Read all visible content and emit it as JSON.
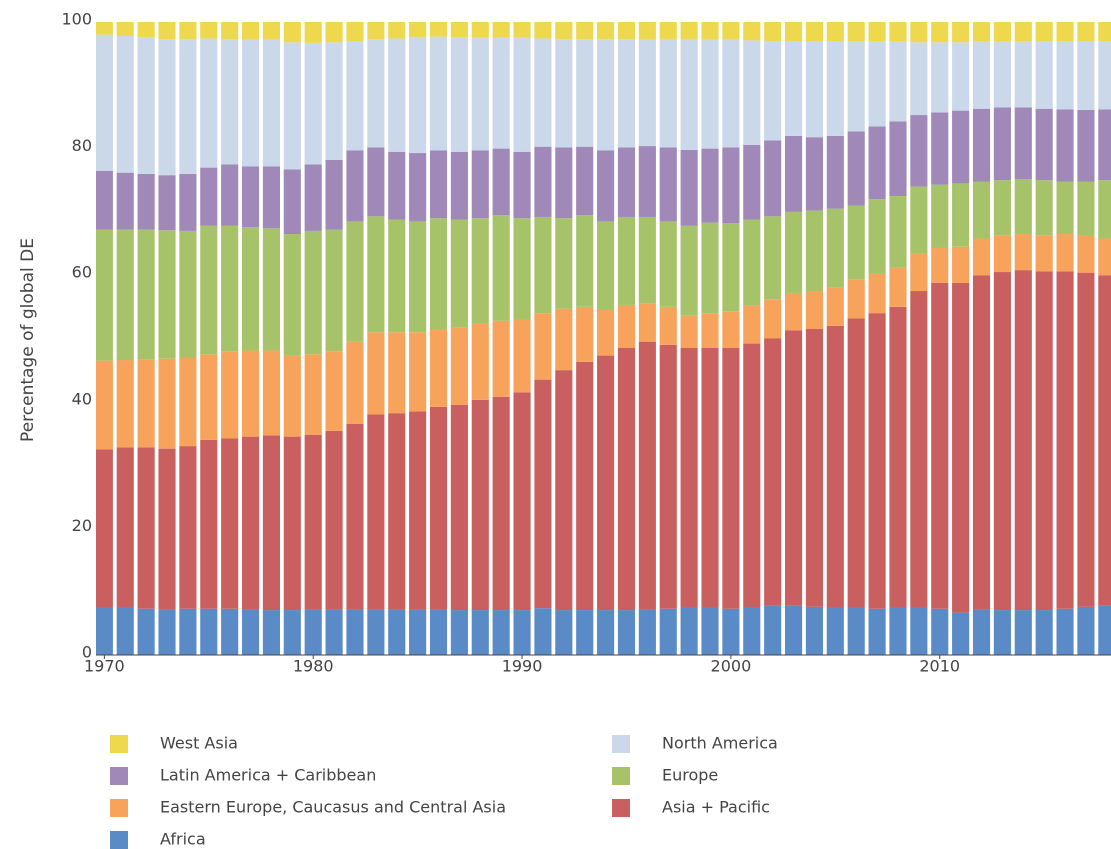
{
  "chart_data": {
    "type": "stacked_bar",
    "ylabel": "Percentage of global DE",
    "x": [
      1970,
      1971,
      1972,
      1973,
      1974,
      1975,
      1976,
      1977,
      1978,
      1979,
      1980,
      1981,
      1982,
      1983,
      1984,
      1985,
      1986,
      1987,
      1988,
      1989,
      1990,
      1991,
      1992,
      1993,
      1994,
      1995,
      1996,
      1997,
      1998,
      1999,
      2000,
      2001,
      2002,
      2003,
      2004,
      2005,
      2006,
      2007,
      2008,
      2009,
      2010,
      2011,
      2012,
      2013,
      2014,
      2015,
      2016,
      2017,
      2018
    ],
    "xlim": [
      1969.6,
      2018.2
    ],
    "xticks": [
      1970,
      1980,
      1990,
      2000,
      2010
    ],
    "ylim": [
      0,
      100
    ],
    "yticks": [
      0,
      20,
      40,
      60,
      80,
      100
    ],
    "series": [
      {
        "name": "Africa",
        "color": "#5b8bc7",
        "values": [
          7.5,
          7.5,
          7.3,
          7.2,
          7.3,
          7.3,
          7.3,
          7.2,
          7.1,
          7.1,
          7.2,
          7.2,
          7.2,
          7.2,
          7.2,
          7.2,
          7.2,
          7.1,
          7.1,
          7.1,
          7.1,
          7.4,
          7.1,
          7.1,
          7.1,
          7.1,
          7.2,
          7.3,
          7.5,
          7.5,
          7.3,
          7.5,
          7.8,
          7.8,
          7.6,
          7.5,
          7.5,
          7.3,
          7.5,
          7.5,
          7.3,
          6.7,
          7.2,
          7.1,
          7.1,
          7.1,
          7.3,
          7.6,
          7.8
        ]
      },
      {
        "name": "Asia + Pacific",
        "color": "#c9605f",
        "values": [
          25.0,
          25.3,
          25.5,
          25.4,
          25.7,
          26.7,
          26.9,
          27.3,
          27.6,
          27.4,
          27.6,
          28.2,
          29.3,
          30.8,
          31.0,
          31.3,
          32.0,
          32.4,
          33.2,
          33.7,
          34.4,
          36.1,
          37.9,
          39.2,
          40.2,
          41.4,
          42.3,
          41.7,
          41.0,
          41.0,
          41.2,
          41.7,
          42.2,
          43.5,
          43.9,
          44.5,
          45.7,
          46.7,
          47.5,
          50.0,
          51.5,
          52.1,
          52.8,
          53.4,
          53.7,
          53.5,
          53.3,
          52.8,
          52.2
        ]
      },
      {
        "name": "Eastern Europe, Caucasus and Central Asia",
        "color": "#f7a35c",
        "values": [
          14.0,
          13.8,
          13.9,
          14.2,
          14.0,
          13.5,
          13.8,
          13.6,
          13.4,
          12.8,
          12.7,
          12.6,
          13.0,
          13.0,
          12.8,
          12.5,
          12.3,
          12.3,
          12.0,
          12.0,
          11.5,
          10.5,
          9.7,
          8.7,
          7.2,
          6.8,
          6.0,
          6.0,
          5.1,
          5.5,
          5.8,
          6.0,
          6.2,
          5.9,
          6.0,
          6.0,
          6.1,
          6.2,
          6.2,
          6.0,
          5.5,
          5.7,
          5.8,
          5.8,
          5.7,
          5.7,
          5.9,
          5.8,
          5.8
        ]
      },
      {
        "name": "Europe",
        "color": "#a6c36a",
        "values": [
          20.7,
          20.6,
          20.5,
          20.3,
          20.0,
          20.3,
          19.8,
          19.5,
          19.3,
          19.2,
          19.5,
          19.2,
          19.0,
          18.3,
          17.8,
          17.5,
          17.5,
          17.0,
          16.7,
          16.7,
          16.0,
          15.2,
          14.3,
          14.5,
          14.0,
          13.9,
          13.7,
          13.5,
          14.2,
          14.3,
          13.9,
          13.6,
          13.1,
          12.8,
          12.7,
          12.5,
          11.7,
          11.8,
          11.3,
          10.5,
          10.0,
          10.0,
          9.0,
          8.7,
          8.7,
          8.7,
          8.3,
          8.6,
          9.2
        ]
      },
      {
        "name": "Latin America + Caribbean",
        "color": "#a088b9",
        "values": [
          9.3,
          9.0,
          8.8,
          8.7,
          9.0,
          9.2,
          9.7,
          9.6,
          9.8,
          10.2,
          10.5,
          11.0,
          11.2,
          10.9,
          10.7,
          10.8,
          10.7,
          10.7,
          10.7,
          10.5,
          10.5,
          11.1,
          11.2,
          10.8,
          11.2,
          11.0,
          11.2,
          11.7,
          12.0,
          11.7,
          12.0,
          11.8,
          12.0,
          12.0,
          11.6,
          11.5,
          11.7,
          11.5,
          11.8,
          11.3,
          11.4,
          11.5,
          11.5,
          11.5,
          11.3,
          11.3,
          11.4,
          11.3,
          11.2
        ]
      },
      {
        "name": "North America",
        "color": "#cad8ea",
        "values": [
          21.5,
          21.6,
          21.6,
          21.5,
          21.3,
          20.4,
          19.8,
          20.0,
          20.0,
          20.1,
          19.2,
          18.6,
          17.3,
          17.1,
          17.9,
          18.3,
          18.0,
          18.1,
          17.8,
          17.5,
          18.0,
          17.1,
          17.1,
          17.0,
          17.6,
          17.1,
          16.8,
          17.0,
          17.4,
          17.2,
          17.0,
          16.5,
          15.7,
          15.0,
          15.2,
          15.0,
          14.3,
          13.4,
          12.6,
          11.5,
          11.1,
          10.8,
          10.6,
          10.4,
          10.4,
          10.7,
          10.8,
          10.9,
          10.8
        ]
      },
      {
        "name": "West Asia",
        "color": "#eed84e",
        "values": [
          2.0,
          2.2,
          2.4,
          2.7,
          2.7,
          2.6,
          2.7,
          2.8,
          2.8,
          3.2,
          3.3,
          3.2,
          3.0,
          2.7,
          2.6,
          2.4,
          2.3,
          2.4,
          2.5,
          2.5,
          2.5,
          2.6,
          2.7,
          2.7,
          2.7,
          2.7,
          2.8,
          2.8,
          2.8,
          2.8,
          2.8,
          2.9,
          3.0,
          3.0,
          3.0,
          3.0,
          3.0,
          3.1,
          3.1,
          3.2,
          3.2,
          3.2,
          3.1,
          3.1,
          3.1,
          3.0,
          3.0,
          3.0,
          3.0
        ]
      }
    ]
  }
}
